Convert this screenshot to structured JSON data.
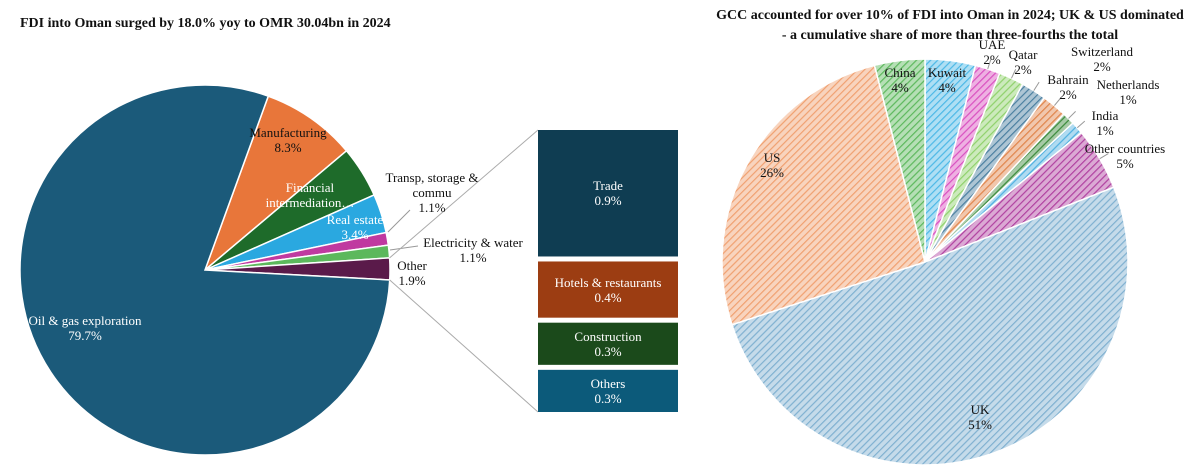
{
  "chart_data": [
    {
      "type": "pie",
      "title": "FDI into Oman surged by 18.0% yoy to OMR 30.04bn in 2024",
      "categories": [
        "Manufacturing",
        "Financial intermediation…",
        "Real estate",
        "Transp, storage & commu",
        "Electricity & water",
        "Other",
        "Oil & gas exploration"
      ],
      "values": [
        8.3,
        4.5,
        3.4,
        1.1,
        1.1,
        1.9,
        79.7
      ],
      "value_labels": [
        "8.3%",
        null,
        "3.4%",
        "1.1%",
        "1.1%",
        "1.9%",
        "79.7%"
      ],
      "colors": [
        "#e8763a",
        "#1e6b2a",
        "#2aa8e0",
        "#c039a0",
        "#5cb85c",
        "#5a1a4a",
        "#1b5a7a"
      ],
      "breakout": {
        "categories": [
          "Trade",
          "Hotels & restaurants",
          "Construction",
          "Others"
        ],
        "values": [
          0.9,
          0.4,
          0.3,
          0.3
        ],
        "value_labels": [
          "0.9%",
          "0.4%",
          "0.3%",
          "0.3%"
        ],
        "colors": [
          "#0f3d52",
          "#9c3d12",
          "#1b4a1b",
          "#0c5a7a"
        ]
      }
    },
    {
      "type": "pie",
      "title": "GCC accounted for over 10% of FDI into Oman in 2024; UK & US dominated - a cumulative share of more than three-fourths the total",
      "categories": [
        "Kuwait",
        "UAE",
        "Qatar",
        "Switzerland",
        "Bahrain",
        "Netherlands",
        "India",
        "Other countries",
        "UK",
        "US",
        "China"
      ],
      "values": [
        4,
        2,
        2,
        2,
        2,
        1,
        1,
        5,
        51,
        26,
        4
      ],
      "value_labels": [
        "4%",
        "2%",
        "2%",
        "2%",
        "2%",
        "1%",
        "1%",
        "5%",
        "51%",
        "26%",
        "4%"
      ],
      "colors": [
        "#4cb8e6",
        "#d94fc0",
        "#8fd16b",
        "#4a7fa0",
        "#e0844a",
        "#3a8a3a",
        "#4fb0e0",
        "#b040a0",
        "#7fb0d0",
        "#f0a070",
        "#5cb85c"
      ]
    }
  ]
}
